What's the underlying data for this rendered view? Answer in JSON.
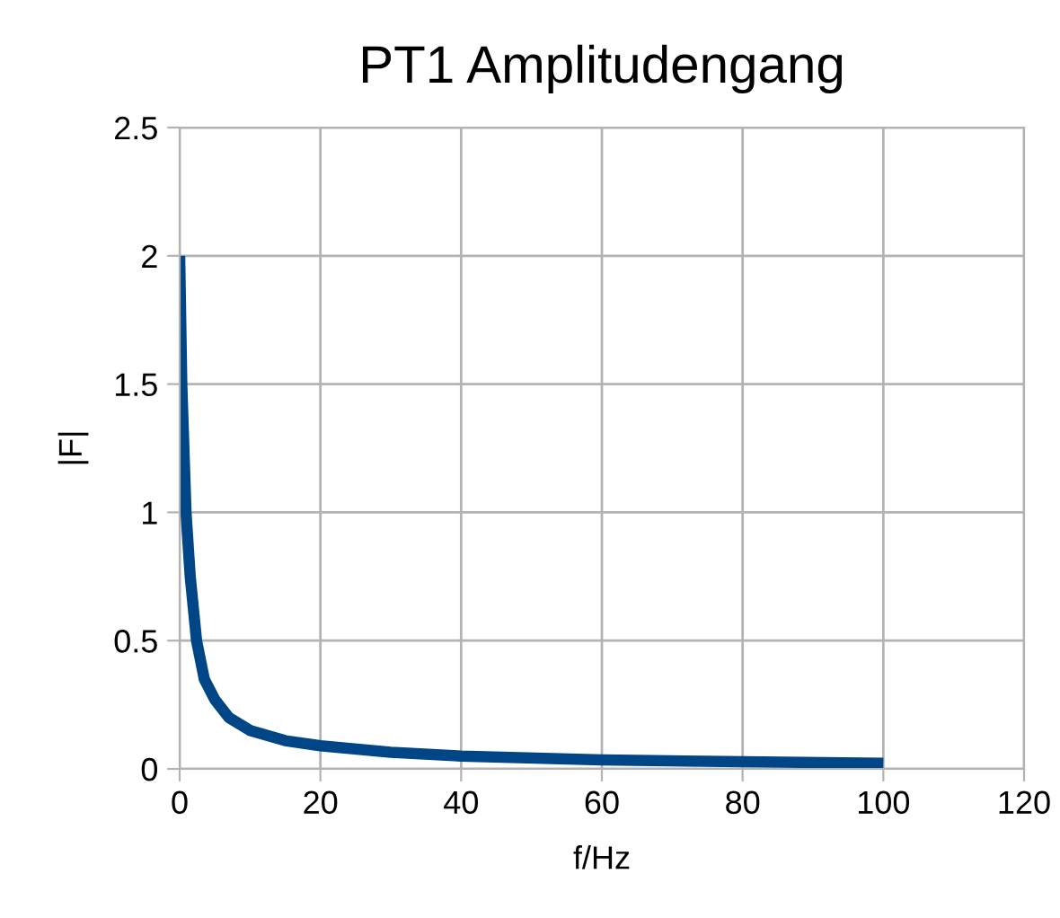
{
  "chart_data": {
    "type": "line",
    "title": "PT1 Amplitudengang",
    "xlabel": "f/Hz",
    "ylabel": "|F|",
    "series": [
      {
        "color": "#004586",
        "x": [
          0,
          0.3,
          0.9,
          1.5,
          2.4,
          3.5,
          5,
          7,
          10,
          15,
          20,
          30,
          40,
          60,
          80,
          100
        ],
        "values": [
          2,
          1.5,
          1.0,
          0.75,
          0.5,
          0.35,
          0.27,
          0.2,
          0.15,
          0.11,
          0.09,
          0.065,
          0.05,
          0.035,
          0.028,
          0.022
        ]
      }
    ],
    "xlim": [
      0,
      120
    ],
    "xticks": [
      0,
      20,
      40,
      60,
      80,
      100,
      120
    ],
    "ylim": [
      0,
      2.5
    ],
    "yticks": [
      0,
      0.5,
      1,
      1.5,
      2,
      2.5
    ],
    "grid": true,
    "legend": false,
    "marker": "none",
    "line_style": "solid"
  }
}
